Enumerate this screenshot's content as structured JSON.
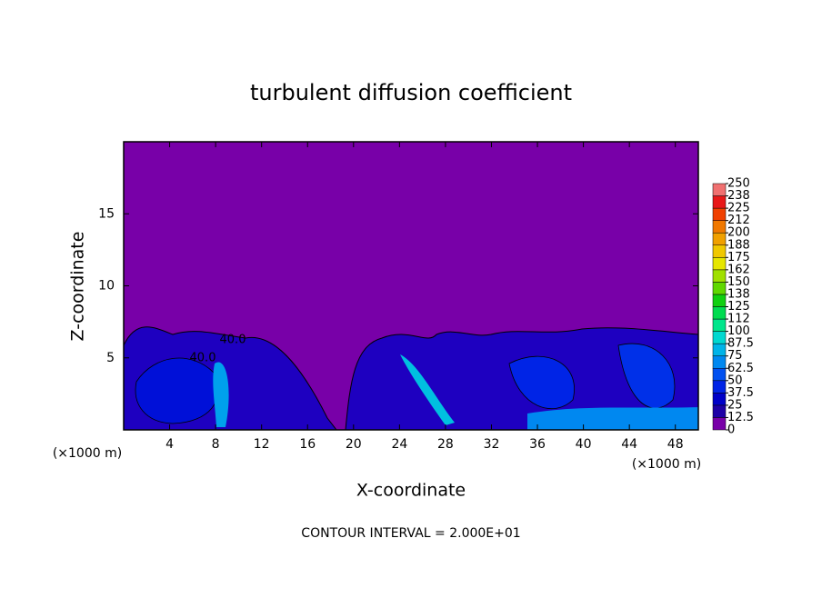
{
  "chart_data": {
    "type": "contour",
    "title": "turbulent diffusion coefficient",
    "xlabel": "X-coordinate",
    "ylabel": "Z-coordinate",
    "x_unit": "(×1000 m)",
    "footer": "CONTOUR INTERVAL = 2.000E+01",
    "xlim": [
      0,
      50
    ],
    "xticks": [
      4,
      8,
      12,
      16,
      20,
      24,
      28,
      32,
      36,
      40,
      44,
      48
    ],
    "ylim": [
      0,
      20
    ],
    "yticks": [
      5,
      10,
      15
    ],
    "annotations": [
      "40.0",
      "40.0"
    ],
    "colorbar": {
      "lim": [
        0,
        250
      ],
      "ticks": [
        0,
        12.5,
        25,
        37.5,
        50,
        62.5,
        75,
        87.5,
        100,
        {
          "value": 112.5,
          "label": "112"
        },
        125,
        {
          "value": 137.5,
          "label": "138"
        },
        150,
        {
          "value": 162.5,
          "label": "162"
        },
        175,
        {
          "value": 187.5,
          "label": "188"
        },
        200,
        {
          "value": 212.5,
          "label": "212"
        },
        225,
        {
          "value": 237.5,
          "label": "238"
        },
        250
      ],
      "colors": [
        "#7800a8",
        "#1e00a6",
        "#0000c8",
        "#0024e6",
        "#0050f0",
        "#0088f0",
        "#00b4e8",
        "#00d8d0",
        "#00e68c",
        "#00dc50",
        "#10d010",
        "#60d800",
        "#a0e000",
        "#e6e600",
        "#f0c800",
        "#f0a000",
        "#f07800",
        "#f04000",
        "#e81818",
        "#f07070"
      ]
    }
  }
}
